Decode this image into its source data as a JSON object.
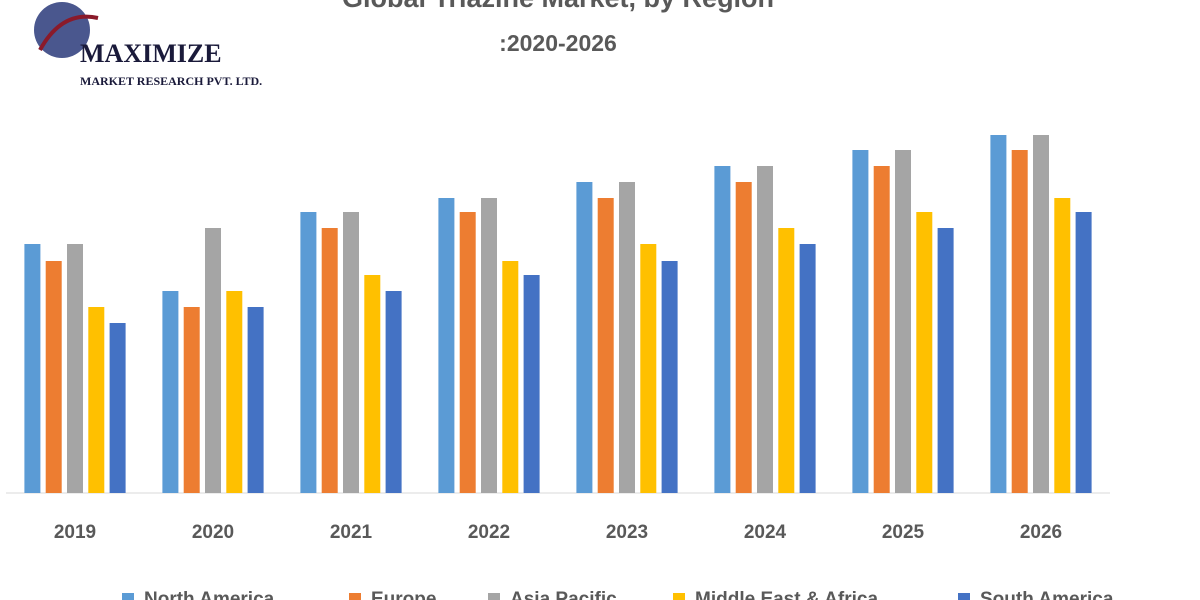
{
  "logo": {
    "name": "MAXIMIZE",
    "subtitle": "MARKET RESEARCH PVT. LTD."
  },
  "chart_data": {
    "type": "bar",
    "title": "Global Triazine Market, by Region",
    "subtitle": ":2020-2026",
    "categories": [
      "2019",
      "2020",
      "2021",
      "2022",
      "2023",
      "2024",
      "2025",
      "2026"
    ],
    "series": [
      {
        "name": "North America",
        "color": "#5b9bd5",
        "values": [
          249,
          202,
          281,
          295,
          311,
          327,
          343,
          358
        ]
      },
      {
        "name": "Europe",
        "color": "#ed7d31",
        "values": [
          232,
          186,
          265,
          281,
          295,
          311,
          327,
          343
        ]
      },
      {
        "name": "Asia Pacific",
        "color": "#a5a5a5",
        "values": [
          249,
          265,
          281,
          295,
          311,
          327,
          343,
          358
        ]
      },
      {
        "name": "Middle East & Africa",
        "color": "#ffc000",
        "values": [
          186,
          202,
          218,
          232,
          249,
          265,
          281,
          295
        ]
      },
      {
        "name": "South America",
        "color": "#4472c4",
        "values": [
          170,
          186,
          202,
          218,
          232,
          249,
          265,
          281
        ]
      }
    ],
    "ylim": [
      0,
      358
    ],
    "legend": "bottom"
  }
}
